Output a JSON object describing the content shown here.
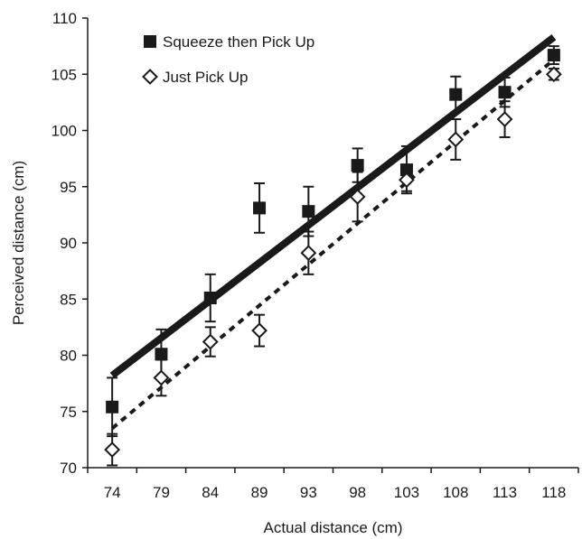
{
  "chart_data": {
    "type": "scatter",
    "xlabel": "Actual distance (cm)",
    "ylabel": "Perceived distance (cm)",
    "categories": [
      "74",
      "79",
      "84",
      "89",
      "93",
      "98",
      "103",
      "108",
      "113",
      "118"
    ],
    "ylim": [
      70,
      110
    ],
    "yticks": [
      "70",
      "75",
      "80",
      "85",
      "90",
      "95",
      "100",
      "105",
      "110"
    ],
    "grid": false,
    "legend_position": "top-left",
    "series": [
      {
        "name": "Squeeze then Pick Up",
        "marker": "filled-square",
        "color": "#1a1a1a",
        "values": [
          75.4,
          80.1,
          85.1,
          93.1,
          92.8,
          96.9,
          96.5,
          103.2,
          103.4,
          106.7
        ],
        "err": [
          2.6,
          2.2,
          2.1,
          2.2,
          2.2,
          1.5,
          2.1,
          1.6,
          1.3,
          0.8
        ],
        "trendline": {
          "style": "solid",
          "start": 78.2,
          "end": 108.3
        }
      },
      {
        "name": "Just Pick Up",
        "marker": "open-diamond",
        "color": "#1a1a1a",
        "values": [
          71.6,
          78.0,
          81.2,
          82.2,
          89.1,
          94.1,
          95.6,
          99.2,
          101.0,
          105.0
        ],
        "err": [
          1.4,
          1.6,
          1.3,
          1.4,
          1.9,
          2.2,
          1.0,
          1.8,
          1.6,
          0.5
        ],
        "trendline": {
          "style": "dashed",
          "start": 73.5,
          "end": 106.3
        }
      }
    ]
  }
}
